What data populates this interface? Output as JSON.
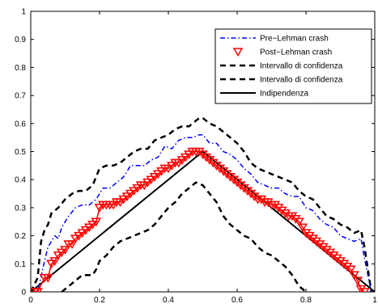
{
  "chart_data": {
    "type": "line",
    "xlim": [
      0,
      1
    ],
    "ylim": [
      0,
      1
    ],
    "x_ticks": [
      "0",
      "0.2",
      "0.4",
      "0.6",
      "0.8",
      "1"
    ],
    "y_ticks": [
      "0",
      "0.1",
      "0.2",
      "0.3",
      "0.4",
      "0.5",
      "0.6",
      "0.7",
      "0.8",
      "0.9",
      "1"
    ],
    "grid": false,
    "legend_position": "top-right",
    "series": [
      {
        "name": "Pre−Lehman crash",
        "style": "dash-dot",
        "color": "#0000ff",
        "x": [
          0.0,
          0.02,
          0.04,
          0.05,
          0.06,
          0.07,
          0.08,
          0.09,
          0.1,
          0.11,
          0.13,
          0.15,
          0.17,
          0.19,
          0.21,
          0.23,
          0.25,
          0.27,
          0.29,
          0.31,
          0.33,
          0.35,
          0.37,
          0.39,
          0.41,
          0.43,
          0.45,
          0.47,
          0.49,
          0.5,
          0.52,
          0.54,
          0.56,
          0.58,
          0.6,
          0.62,
          0.64,
          0.66,
          0.68,
          0.7,
          0.72,
          0.74,
          0.76,
          0.78,
          0.8,
          0.82,
          0.84,
          0.86,
          0.88,
          0.9,
          0.92,
          0.94,
          0.96,
          0.97,
          0.98,
          0.99
        ],
        "y": [
          0.0,
          0.0,
          0.11,
          0.16,
          0.18,
          0.2,
          0.19,
          0.23,
          0.25,
          0.27,
          0.3,
          0.31,
          0.31,
          0.33,
          0.37,
          0.37,
          0.39,
          0.41,
          0.45,
          0.45,
          0.45,
          0.47,
          0.48,
          0.52,
          0.51,
          0.54,
          0.55,
          0.55,
          0.56,
          0.56,
          0.53,
          0.53,
          0.5,
          0.49,
          0.47,
          0.44,
          0.42,
          0.39,
          0.38,
          0.37,
          0.37,
          0.35,
          0.34,
          0.34,
          0.3,
          0.29,
          0.26,
          0.24,
          0.23,
          0.2,
          0.19,
          0.18,
          0.19,
          0.12,
          0.06,
          0.0
        ]
      },
      {
        "name": "Post−Lehman crash",
        "style": "triangle-markers",
        "color": "#ff0000",
        "x": [
          0.0,
          0.01,
          0.02,
          0.04,
          0.05,
          0.06,
          0.07,
          0.08,
          0.09,
          0.1,
          0.11,
          0.12,
          0.13,
          0.14,
          0.15,
          0.16,
          0.17,
          0.18,
          0.19,
          0.2,
          0.21,
          0.22,
          0.23,
          0.24,
          0.25,
          0.26,
          0.27,
          0.28,
          0.29,
          0.3,
          0.31,
          0.32,
          0.33,
          0.34,
          0.35,
          0.36,
          0.37,
          0.38,
          0.39,
          0.4,
          0.41,
          0.42,
          0.43,
          0.44,
          0.45,
          0.46,
          0.47,
          0.48,
          0.49,
          0.5,
          0.51,
          0.52,
          0.53,
          0.54,
          0.55,
          0.56,
          0.57,
          0.58,
          0.59,
          0.6,
          0.61,
          0.62,
          0.63,
          0.64,
          0.65,
          0.66,
          0.67,
          0.68,
          0.69,
          0.7,
          0.71,
          0.72,
          0.73,
          0.74,
          0.75,
          0.76,
          0.77,
          0.78,
          0.79,
          0.8,
          0.81,
          0.82,
          0.83,
          0.84,
          0.85,
          0.86,
          0.87,
          0.88,
          0.89,
          0.9,
          0.91,
          0.92,
          0.93,
          0.94,
          0.95,
          0.96,
          0.97
        ],
        "y": [
          0.0,
          0.0,
          0.0,
          0.05,
          0.05,
          0.1,
          0.11,
          0.13,
          0.14,
          0.15,
          0.17,
          0.17,
          0.19,
          0.2,
          0.21,
          0.22,
          0.23,
          0.24,
          0.25,
          0.3,
          0.31,
          0.31,
          0.31,
          0.31,
          0.32,
          0.32,
          0.33,
          0.34,
          0.35,
          0.36,
          0.37,
          0.38,
          0.38,
          0.39,
          0.4,
          0.41,
          0.42,
          0.43,
          0.44,
          0.44,
          0.45,
          0.46,
          0.46,
          0.47,
          0.48,
          0.49,
          0.5,
          0.5,
          0.5,
          0.49,
          0.48,
          0.47,
          0.46,
          0.45,
          0.44,
          0.43,
          0.42,
          0.41,
          0.4,
          0.39,
          0.38,
          0.37,
          0.36,
          0.35,
          0.34,
          0.33,
          0.33,
          0.32,
          0.32,
          0.31,
          0.31,
          0.3,
          0.29,
          0.28,
          0.27,
          0.27,
          0.26,
          0.25,
          0.23,
          0.21,
          0.2,
          0.19,
          0.18,
          0.17,
          0.16,
          0.15,
          0.14,
          0.13,
          0.12,
          0.11,
          0.1,
          0.09,
          0.08,
          0.06,
          0.04,
          0.01,
          0.0
        ]
      },
      {
        "name": "Intervallo di confidenza",
        "style": "dashed",
        "color": "#000000",
        "x": [
          0.0,
          0.02,
          0.03,
          0.04,
          0.05,
          0.06,
          0.07,
          0.08,
          0.1,
          0.12,
          0.14,
          0.16,
          0.18,
          0.2,
          0.22,
          0.24,
          0.26,
          0.28,
          0.3,
          0.32,
          0.34,
          0.36,
          0.38,
          0.4,
          0.42,
          0.44,
          0.46,
          0.48,
          0.49,
          0.5,
          0.52,
          0.54,
          0.56,
          0.58,
          0.6,
          0.62,
          0.64,
          0.66,
          0.68,
          0.7,
          0.72,
          0.74,
          0.76,
          0.78,
          0.8,
          0.82,
          0.84,
          0.86,
          0.88,
          0.9,
          0.92,
          0.94,
          0.96,
          0.97,
          0.98,
          0.99
        ],
        "y": [
          0.0,
          0.05,
          0.18,
          0.22,
          0.24,
          0.28,
          0.29,
          0.3,
          0.33,
          0.35,
          0.36,
          0.36,
          0.38,
          0.44,
          0.45,
          0.45,
          0.46,
          0.48,
          0.5,
          0.51,
          0.51,
          0.54,
          0.55,
          0.56,
          0.58,
          0.59,
          0.59,
          0.61,
          0.62,
          0.62,
          0.6,
          0.59,
          0.57,
          0.55,
          0.53,
          0.5,
          0.46,
          0.44,
          0.43,
          0.42,
          0.41,
          0.4,
          0.39,
          0.36,
          0.34,
          0.33,
          0.3,
          0.27,
          0.26,
          0.24,
          0.23,
          0.21,
          0.22,
          0.16,
          0.08,
          0.0
        ]
      },
      {
        "name": "Intervallo di confidenza",
        "style": "dashed",
        "color": "#000000",
        "x": [
          0.09,
          0.1,
          0.11,
          0.12,
          0.13,
          0.14,
          0.15,
          0.16,
          0.17,
          0.18,
          0.19,
          0.2,
          0.22,
          0.24,
          0.26,
          0.28,
          0.3,
          0.32,
          0.34,
          0.36,
          0.38,
          0.4,
          0.42,
          0.44,
          0.46,
          0.48,
          0.5,
          0.52,
          0.54,
          0.56,
          0.58,
          0.6,
          0.62,
          0.64,
          0.66,
          0.68,
          0.7,
          0.72,
          0.74,
          0.76,
          0.77,
          0.78,
          0.79,
          0.8
        ],
        "y": [
          0.0,
          0.01,
          0.02,
          0.03,
          0.04,
          0.05,
          0.06,
          0.06,
          0.06,
          0.06,
          0.08,
          0.11,
          0.13,
          0.16,
          0.18,
          0.19,
          0.2,
          0.21,
          0.22,
          0.24,
          0.27,
          0.3,
          0.32,
          0.35,
          0.37,
          0.39,
          0.38,
          0.35,
          0.32,
          0.27,
          0.24,
          0.22,
          0.2,
          0.19,
          0.16,
          0.14,
          0.13,
          0.11,
          0.09,
          0.06,
          0.04,
          0.02,
          0.01,
          0.0
        ]
      },
      {
        "name": "Indipendenza",
        "style": "solid",
        "color": "#000000",
        "x": [
          0.0,
          0.5,
          1.0
        ],
        "y": [
          0.0,
          0.5,
          0.0
        ]
      }
    ]
  }
}
